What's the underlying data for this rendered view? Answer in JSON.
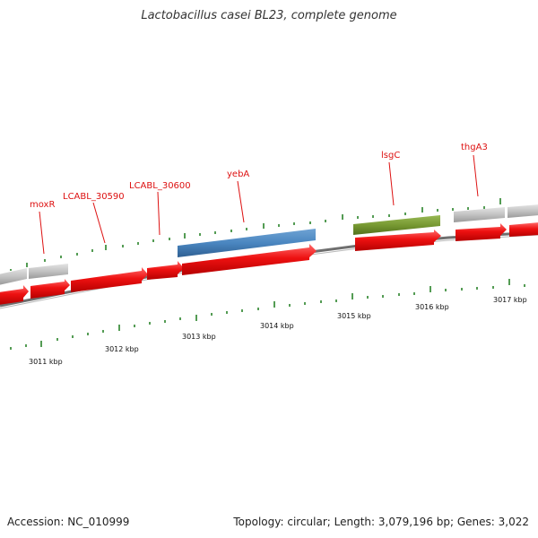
{
  "header": {
    "title": "Lactobacillus casei BL23, complete genome"
  },
  "footer": {
    "accession": "Accession: NC_010999",
    "summary": "Topology: circular; Length: 3,079,196 bp; Genes: 3,022"
  },
  "genes": {
    "moxR": "moxR",
    "lcabl_30590": "LCABL_30590",
    "lcabl_30600": "LCABL_30600",
    "yebA": "yebA",
    "lsgC": "lsgC",
    "thgA3": "thgA3"
  },
  "kbp_ticks": [
    "3011 kbp",
    "3012 kbp",
    "3013 kbp",
    "3014 kbp",
    "3015 kbp",
    "3016 kbp",
    "3017 kbp"
  ],
  "colors": {
    "cds": "#ee1111",
    "rna_grey": "#c2c2c2",
    "blue_feature": "#4a86c0",
    "green_feature": "#779932",
    "backbone": "#777777",
    "tick": "#1b7a1b",
    "label": "#dd1111"
  }
}
